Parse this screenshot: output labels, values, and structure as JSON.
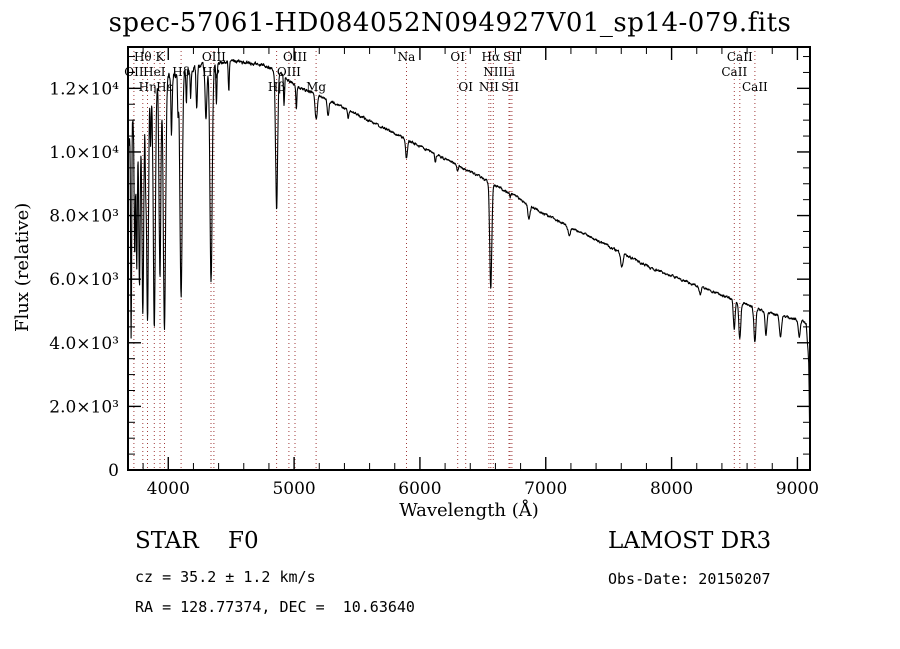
{
  "chart_data": {
    "type": "line",
    "title": "spec-57061-HD084052N094927V01_sp14-079.fits",
    "xlabel": "Wavelength (Å)",
    "ylabel": "Flux (relative)",
    "xlim": [
      3680,
      9100
    ],
    "ylim": [
      0,
      13300
    ],
    "xticks": [
      4000,
      5000,
      6000,
      7000,
      8000,
      9000
    ],
    "x_minor_step": 200,
    "yticks": [
      {
        "value": 0,
        "label": "0"
      },
      {
        "value": 2000,
        "label": "2.0×10³"
      },
      {
        "value": 4000,
        "label": "4.0×10³"
      },
      {
        "value": 6000,
        "label": "6.0×10³"
      },
      {
        "value": 8000,
        "label": "8.0×10³"
      },
      {
        "value": 10000,
        "label": "1.0×10⁴"
      },
      {
        "value": 12000,
        "label": "1.2×10⁴"
      }
    ],
    "y_minor_step": 500,
    "grid": "off",
    "legend": "none",
    "spectrum_color": "#000000",
    "marker_line_color": "#a03a3a",
    "marker_label_color": "#000000",
    "line_markers": [
      {
        "label": "OII",
        "wavelength": 3727,
        "row": 1
      },
      {
        "label": "Hθ",
        "wavelength": 3798,
        "row": 0
      },
      {
        "label": "Hη",
        "wavelength": 3835,
        "row": 2
      },
      {
        "label": "HeI",
        "wavelength": 3889,
        "row": 1
      },
      {
        "label": "K",
        "wavelength": 3934,
        "row": 0
      },
      {
        "label": "Hε",
        "wavelength": 3970,
        "row": 2
      },
      {
        "label": "Hδ",
        "wavelength": 4102,
        "row": 1
      },
      {
        "label": "Hγ",
        "wavelength": 4340,
        "row": 1
      },
      {
        "label": "OIII",
        "wavelength": 4363,
        "row": 0
      },
      {
        "label": "Hβ",
        "wavelength": 4861,
        "row": 2
      },
      {
        "label": "OIII",
        "wavelength": 4959,
        "row": 1
      },
      {
        "label": "OIII",
        "wavelength": 5007,
        "row": 0
      },
      {
        "label": "Mg",
        "wavelength": 5175,
        "row": 2
      },
      {
        "label": "Na",
        "wavelength": 5893,
        "row": 0
      },
      {
        "label": "OI",
        "wavelength": 6300,
        "row": 0
      },
      {
        "label": "OI",
        "wavelength": 6364,
        "row": 2
      },
      {
        "label": "NII",
        "wavelength": 6548,
        "row": 2
      },
      {
        "label": "Hα",
        "wavelength": 6563,
        "row": 0
      },
      {
        "label": "NII",
        "wavelength": 6583,
        "row": 1
      },
      {
        "label": "Li",
        "wavelength": 6708,
        "row": 1
      },
      {
        "label": "SII",
        "wavelength": 6717,
        "row": 2
      },
      {
        "label": "SII",
        "wavelength": 6731,
        "row": 0
      },
      {
        "label": "CaII",
        "wavelength": 8498,
        "row": 1
      },
      {
        "label": "CaII",
        "wavelength": 8542,
        "row": 0
      },
      {
        "label": "CaII",
        "wavelength": 8662,
        "row": 2
      }
    ],
    "spectrum": {
      "sample_step": 2.5,
      "noise": {
        "seed": 20150207,
        "base": 34,
        "corr": 0.55,
        "blue_amp": 6.0,
        "blue_scale": 330,
        "scale": 2.2
      },
      "continuum": [
        [
          3680,
          10300
        ],
        [
          3720,
          11000
        ],
        [
          3760,
          11350
        ],
        [
          3800,
          11650
        ],
        [
          3850,
          11850
        ],
        [
          3900,
          12050
        ],
        [
          3950,
          12200
        ],
        [
          4000,
          12300
        ],
        [
          4060,
          12400
        ],
        [
          4140,
          12550
        ],
        [
          4240,
          12680
        ],
        [
          4340,
          12750
        ],
        [
          4440,
          12830
        ],
        [
          4540,
          12840
        ],
        [
          4640,
          12800
        ],
        [
          4740,
          12740
        ],
        [
          4820,
          12620
        ],
        [
          4900,
          12430
        ],
        [
          4980,
          12180
        ],
        [
          5060,
          11980
        ],
        [
          5160,
          11870
        ],
        [
          5260,
          11660
        ],
        [
          5360,
          11460
        ],
        [
          5460,
          11260
        ],
        [
          5560,
          11060
        ],
        [
          5660,
          10860
        ],
        [
          5760,
          10660
        ],
        [
          5860,
          10460
        ],
        [
          5960,
          10260
        ],
        [
          6060,
          10060
        ],
        [
          6160,
          9860
        ],
        [
          6260,
          9660
        ],
        [
          6360,
          9460
        ],
        [
          6460,
          9260
        ],
        [
          6560,
          9010
        ],
        [
          6660,
          8810
        ],
        [
          6760,
          8610
        ],
        [
          6860,
          8360
        ],
        [
          6960,
          8110
        ],
        [
          7060,
          7910
        ],
        [
          7160,
          7710
        ],
        [
          7260,
          7510
        ],
        [
          7360,
          7310
        ],
        [
          7460,
          7110
        ],
        [
          7560,
          6910
        ],
        [
          7660,
          6710
        ],
        [
          7760,
          6510
        ],
        [
          7860,
          6310
        ],
        [
          7960,
          6160
        ],
        [
          8060,
          6010
        ],
        [
          8160,
          5860
        ],
        [
          8260,
          5710
        ],
        [
          8360,
          5560
        ],
        [
          8460,
          5410
        ],
        [
          8560,
          5260
        ],
        [
          8660,
          5110
        ],
        [
          8760,
          4960
        ],
        [
          8860,
          4860
        ],
        [
          8960,
          4760
        ],
        [
          9040,
          4680
        ],
        [
          9070,
          4590
        ],
        [
          9090,
          3400
        ],
        [
          9100,
          300
        ]
      ],
      "absorption_lines": [
        [
          3705,
          6500,
          4
        ],
        [
          3734,
          4500,
          5
        ],
        [
          3750,
          5000,
          5
        ],
        [
          3771,
          5800,
          6
        ],
        [
          3798,
          6800,
          7
        ],
        [
          3820,
          2200,
          4
        ],
        [
          3835,
          7200,
          7
        ],
        [
          3860,
          1800,
          4
        ],
        [
          3889,
          7500,
          8
        ],
        [
          3934,
          6200,
          7
        ],
        [
          3970,
          7800,
          9
        ],
        [
          4026,
          1800,
          5
        ],
        [
          4077,
          1200,
          4
        ],
        [
          4102,
          7000,
          9
        ],
        [
          4144,
          1000,
          4
        ],
        [
          4178,
          900,
          4
        ],
        [
          4226,
          1400,
          5
        ],
        [
          4300,
          1600,
          7
        ],
        [
          4340,
          6800,
          9
        ],
        [
          4383,
          1300,
          4
        ],
        [
          4481,
          900,
          4
        ],
        [
          4861,
          4300,
          8
        ],
        [
          4920,
          900,
          4
        ],
        [
          5018,
          700,
          4
        ],
        [
          5175,
          800,
          9
        ],
        [
          5270,
          500,
          7
        ],
        [
          5430,
          300,
          6
        ],
        [
          5893,
          600,
          7
        ],
        [
          6122,
          250,
          5
        ],
        [
          6300,
          200,
          5
        ],
        [
          6563,
          3300,
          8
        ],
        [
          6717,
          150,
          4
        ],
        [
          6867,
          450,
          9
        ],
        [
          7186,
          250,
          10
        ],
        [
          7605,
          450,
          9
        ],
        [
          8227,
          250,
          7
        ],
        [
          8498,
          950,
          7
        ],
        [
          8542,
          1150,
          8
        ],
        [
          8662,
          1050,
          8
        ],
        [
          8750,
          750,
          7
        ],
        [
          8865,
          650,
          8
        ],
        [
          9015,
          550,
          7
        ]
      ]
    }
  },
  "annotations": {
    "class_line": "STAR    F0",
    "cz_line": "cz = 35.2 ± 1.2 km/s",
    "radec_line": "RA = 128.77374, DEC =  10.63640",
    "survey": "LAMOST DR3",
    "obs_date": "Obs-Date: 20150207"
  }
}
